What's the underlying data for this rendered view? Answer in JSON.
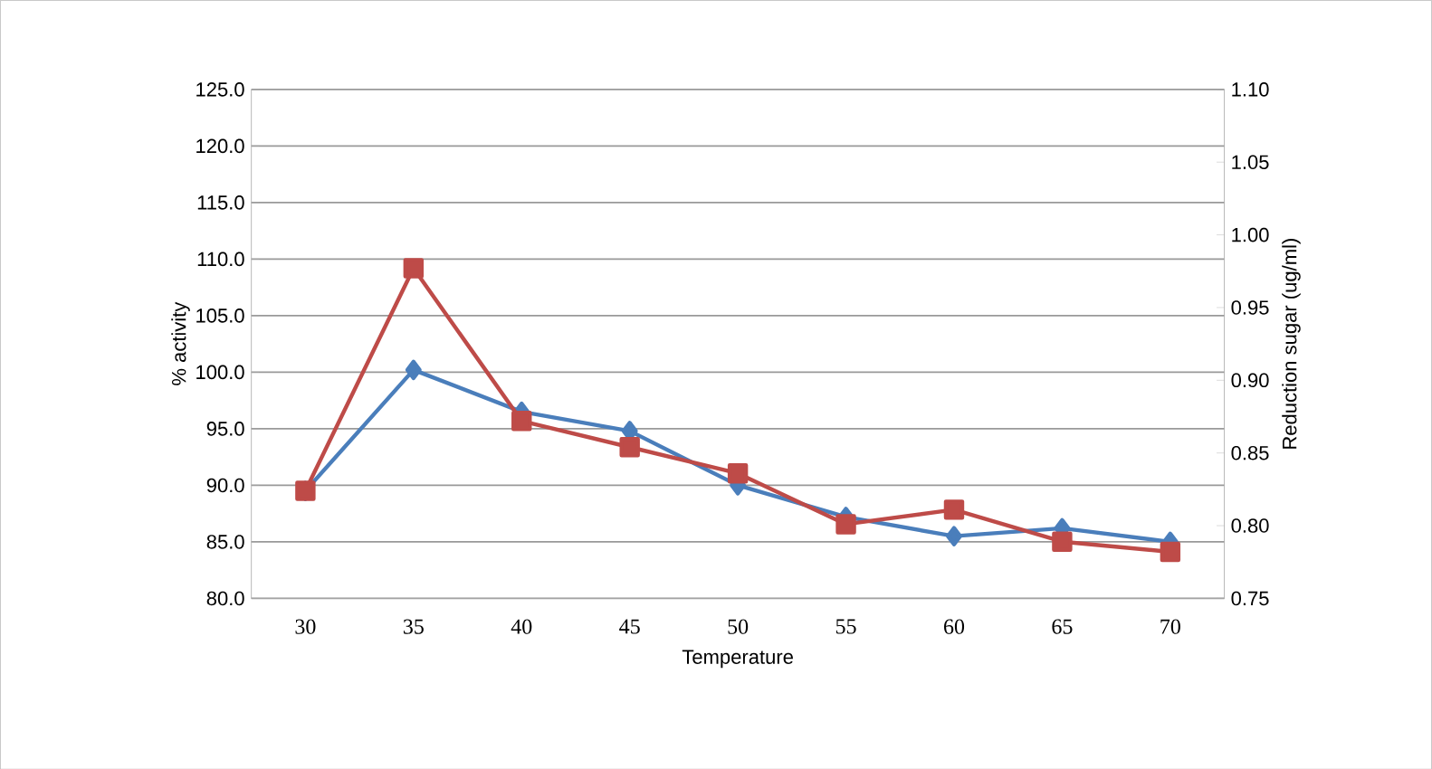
{
  "chart_data": {
    "type": "line",
    "xlabel": "Temperature",
    "ylabel": "% activity",
    "y2label": "Reduction sugar (ug/ml)",
    "categories": [
      "30",
      "35",
      "40",
      "45",
      "50",
      "55",
      "60",
      "65",
      "70"
    ],
    "series": [
      {
        "color": "#4a7ebb",
        "marker": "diamond",
        "values": [
          89.5,
          100.2,
          96.5,
          94.8,
          90.0,
          87.2,
          85.5,
          86.2,
          85.0
        ]
      },
      {
        "color": "#be4b48",
        "marker": "square",
        "axis": "y2",
        "values": [
          0.824,
          0.977,
          0.872,
          0.854,
          0.836,
          0.801,
          0.811,
          0.789,
          0.782
        ]
      }
    ],
    "ylim": [
      80,
      125
    ],
    "yticks": [
      {
        "value": 80,
        "label": "80.0"
      },
      {
        "value": 85,
        "label": "85.0"
      },
      {
        "value": 90,
        "label": "90.0"
      },
      {
        "value": 95,
        "label": "95.0"
      },
      {
        "value": 100,
        "label": "100.0"
      },
      {
        "value": 105,
        "label": "105.0"
      },
      {
        "value": 110,
        "label": "110.0"
      },
      {
        "value": 115,
        "label": "115.0"
      },
      {
        "value": 120,
        "label": "120.0"
      },
      {
        "value": 125,
        "label": "125.0"
      }
    ],
    "y2lim": [
      0.75,
      1.1
    ],
    "y2ticks": [
      0.75,
      {
        "value": 0.8,
        "label": "0.80"
      },
      0.85,
      {
        "value": 0.9,
        "label": "0.90"
      },
      0.95,
      {
        "value": 1.0,
        "label": "1.00"
      },
      1.05,
      {
        "value": 1.1,
        "label": "1.10"
      }
    ],
    "grid": "y",
    "line_style": "solid"
  }
}
